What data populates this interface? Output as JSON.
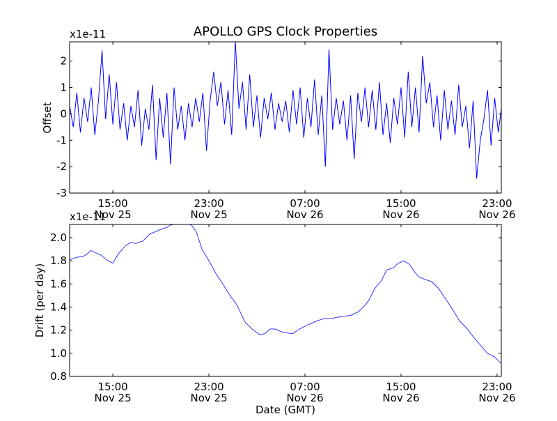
{
  "chart_data": [
    {
      "type": "line",
      "title": "APOLLO GPS Clock Properties",
      "ylabel": "Offset",
      "y_multiplier": "x1e-11",
      "xlabel": "",
      "x_units": "hours since Nov 25 00:00 GMT",
      "xlim": [
        11.4,
        47.35
      ],
      "ylim": [
        -3,
        2.73
      ],
      "yticks": [
        -3,
        -2,
        -1,
        0,
        1,
        2
      ],
      "xticks": [
        15,
        23,
        31,
        39,
        47
      ],
      "xtick_labels": [
        [
          "15:00",
          "Nov 25"
        ],
        [
          "23:00",
          "Nov 25"
        ],
        [
          "07:00",
          "Nov 26"
        ],
        [
          "15:00",
          "Nov 26"
        ],
        [
          "23:00",
          "Nov 26"
        ]
      ],
      "line_color": "#0000ff",
      "x_start": 11.4,
      "x_step": 0.3,
      "values": [
        0.3,
        -0.5,
        0.8,
        -0.7,
        0.6,
        -0.3,
        1.0,
        -0.8,
        0.5,
        2.4,
        -0.2,
        1.5,
        -0.4,
        1.2,
        -0.6,
        0.4,
        -1.0,
        0.3,
        -0.5,
        0.9,
        -1.2,
        0.2,
        -0.6,
        1.1,
        -1.75,
        0.6,
        -0.9,
        0.8,
        -1.9,
        1.0,
        -0.6,
        0.3,
        -1.0,
        0.4,
        -0.5,
        0.6,
        -0.3,
        0.8,
        -1.4,
        0.5,
        1.6,
        0.3,
        1.2,
        -0.4,
        0.9,
        -0.8,
        2.75,
        0.2,
        1.2,
        -0.6,
        1.5,
        -0.5,
        0.7,
        -0.9,
        0.6,
        -0.2,
        0.8,
        -0.6,
        0.4,
        -0.3,
        0.5,
        -0.7,
        0.9,
        -0.4,
        1.0,
        -0.9,
        0.6,
        -0.5,
        1.3,
        -0.8,
        0.7,
        -2.0,
        2.45,
        -0.6,
        0.6,
        -0.4,
        0.5,
        -1.0,
        0.7,
        -1.7,
        0.8,
        -0.3,
        1.0,
        -0.5,
        0.9,
        -0.6,
        1.2,
        -0.8,
        0.4,
        -1.1,
        0.6,
        -0.4,
        1.0,
        -0.9,
        1.6,
        -0.5,
        1.0,
        -0.7,
        2.2,
        0.4,
        1.2,
        -0.5,
        0.7,
        -1.0,
        0.9,
        -0.6,
        0.5,
        -0.8,
        1.1,
        -0.5,
        0.3,
        -1.3,
        0.5,
        -2.45,
        -1.0,
        -0.2,
        0.9,
        -1.2,
        0.6,
        -0.7,
        0.4
      ]
    },
    {
      "type": "line",
      "title": "",
      "ylabel": "Drift (per day)",
      "y_multiplier": "x1e-11",
      "xlabel": "Date (GMT)",
      "x_units": "hours since Nov 25 00:00 GMT",
      "xlim": [
        11.4,
        47.35
      ],
      "ylim": [
        0.8,
        2.115
      ],
      "yticks": [
        0.8,
        1.0,
        1.2,
        1.4,
        1.6,
        1.8,
        2.0
      ],
      "xticks": [
        15,
        23,
        31,
        39,
        47
      ],
      "xtick_labels": [
        [
          "15:00",
          "Nov 25"
        ],
        [
          "23:00",
          "Nov 25"
        ],
        [
          "07:00",
          "Nov 26"
        ],
        [
          "15:00",
          "Nov 26"
        ],
        [
          "23:00",
          "Nov 26"
        ]
      ],
      "line_color": "#3333ff",
      "x": [
        11.41,
        11.99,
        12.57,
        12.97,
        13.14,
        14.01,
        14.59,
        15.0,
        15.46,
        16.04,
        16.51,
        16.91,
        17.49,
        18.07,
        18.94,
        19.52,
        19.81,
        20.39,
        21.26,
        21.55,
        21.96,
        22.42,
        23.0,
        23.58,
        24.16,
        24.62,
        25.32,
        26.01,
        26.59,
        27.23,
        27.64,
        28.1,
        28.51,
        29.2,
        29.96,
        30.54,
        31.12,
        31.99,
        32.57,
        33.32,
        33.55,
        34.3,
        34.88,
        35.46,
        36.04,
        36.33,
        36.8,
        37.38,
        37.78,
        38.36,
        38.77,
        39.23,
        39.7,
        40.16,
        40.51,
        40.97,
        41.55,
        42.13,
        42.71,
        43.29,
        43.87,
        44.45,
        45.03,
        45.61,
        46.19,
        46.77,
        47.35
      ],
      "y": [
        1.81,
        1.83,
        1.84,
        1.87,
        1.89,
        1.85,
        1.8,
        1.78,
        1.86,
        1.93,
        1.96,
        1.95,
        1.97,
        2.03,
        2.07,
        2.09,
        2.11,
        2.12,
        2.12,
        2.11,
        2.05,
        1.9,
        1.8,
        1.69,
        1.6,
        1.52,
        1.42,
        1.27,
        1.21,
        1.16,
        1.17,
        1.21,
        1.21,
        1.18,
        1.17,
        1.21,
        1.24,
        1.28,
        1.3,
        1.3,
        1.31,
        1.32,
        1.33,
        1.36,
        1.42,
        1.46,
        1.56,
        1.63,
        1.72,
        1.74,
        1.78,
        1.8,
        1.77,
        1.7,
        1.66,
        1.64,
        1.62,
        1.56,
        1.47,
        1.38,
        1.28,
        1.22,
        1.14,
        1.07,
        1.0,
        0.97,
        0.91
      ]
    }
  ]
}
